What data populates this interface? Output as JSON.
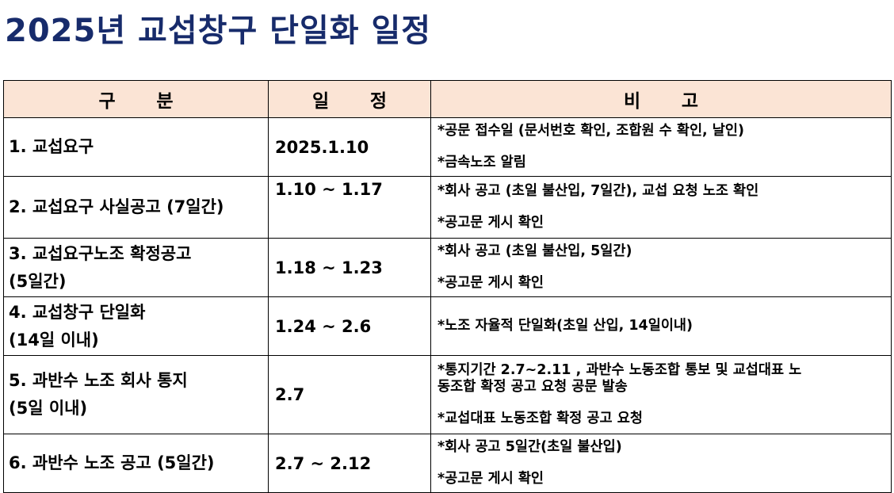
{
  "title": "2025년 교섭창구 단일화 일정",
  "headers": {
    "col1": "구 분",
    "col2": "일 정",
    "col3": "비 고"
  },
  "rows": [
    {
      "gubun": [
        "1. 교섭요구"
      ],
      "date": "2025.1.10",
      "notes": [
        "*공문 접수일 (문서번호 확인, 조합원 수 확인, 날인)",
        "*금속노조 알림"
      ]
    },
    {
      "gubun": [
        "2. 교섭요구 사실공고 (7일간)"
      ],
      "date": "1.10 ~ 1.17",
      "notes": [
        "*회사 공고 (초일 불산입, 7일간), 교섭 요청 노조 확인",
        "*공고문 게시 확인"
      ]
    },
    {
      "gubun": [
        "3. 교섭요구노조 확정공고",
        "(5일간)"
      ],
      "date": "1.18 ~ 1.23",
      "notes": [
        "*회사 공고 (초일 불산입, 5일간)",
        "*공고문 게시 확인"
      ]
    },
    {
      "gubun": [
        "4. 교섭창구 단일화",
        "(14일 이내)"
      ],
      "date": "1.24 ~ 2.6",
      "notes": [
        "*노조 자율적 단일화(초일 산입, 14일이내)"
      ]
    },
    {
      "gubun": [
        "5. 과반수 노조 회사 통지",
        "(5일 이내)"
      ],
      "date": "2.7",
      "notes": [
        "*통지기간 2.7~2.11 , 과반수 노동조합 통보 및 교섭대표 노",
        "동조합 확정 공고 요청 공문 발송",
        "*교섭대표 노동조합 확정 공고 요청"
      ]
    },
    {
      "gubun": [
        "6. 과반수 노조 공고 (5일간)"
      ],
      "date": "2.7 ~ 2.12",
      "notes": [
        "*회사 공고 5일간(초일 불산입)",
        "*공고문 게시 확인"
      ]
    }
  ]
}
